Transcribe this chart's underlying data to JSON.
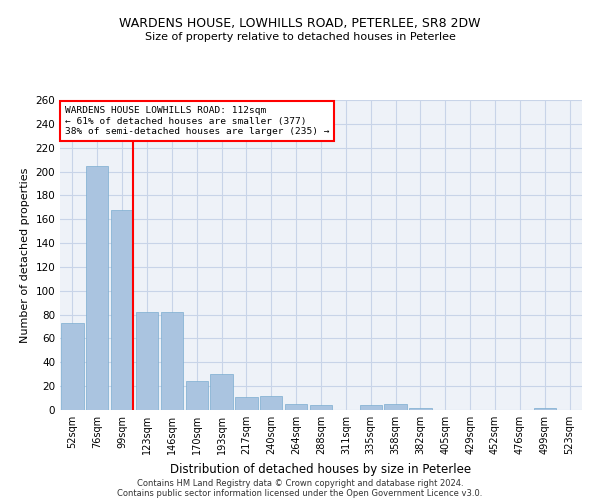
{
  "title1": "WARDENS HOUSE, LOWHILLS ROAD, PETERLEE, SR8 2DW",
  "title2": "Size of property relative to detached houses in Peterlee",
  "xlabel": "Distribution of detached houses by size in Peterlee",
  "ylabel": "Number of detached properties",
  "footer1": "Contains HM Land Registry data © Crown copyright and database right 2024.",
  "footer2": "Contains public sector information licensed under the Open Government Licence v3.0.",
  "categories": [
    "52sqm",
    "76sqm",
    "99sqm",
    "123sqm",
    "146sqm",
    "170sqm",
    "193sqm",
    "217sqm",
    "240sqm",
    "264sqm",
    "288sqm",
    "311sqm",
    "335sqm",
    "358sqm",
    "382sqm",
    "405sqm",
    "429sqm",
    "452sqm",
    "476sqm",
    "499sqm",
    "523sqm"
  ],
  "values": [
    73,
    205,
    168,
    82,
    82,
    24,
    30,
    11,
    12,
    5,
    4,
    0,
    4,
    5,
    2,
    0,
    0,
    0,
    0,
    2,
    0
  ],
  "bar_color": "#aac4e0",
  "bar_edge_color": "#7badd0",
  "bg_color": "#eef2f8",
  "grid_color": "#c8d4e8",
  "ref_line_color": "red",
  "annotation_box_color": "red",
  "annotation_box_bg": "white",
  "ylim": [
    0,
    260
  ],
  "yticks": [
    0,
    20,
    40,
    60,
    80,
    100,
    120,
    140,
    160,
    180,
    200,
    220,
    240,
    260
  ]
}
